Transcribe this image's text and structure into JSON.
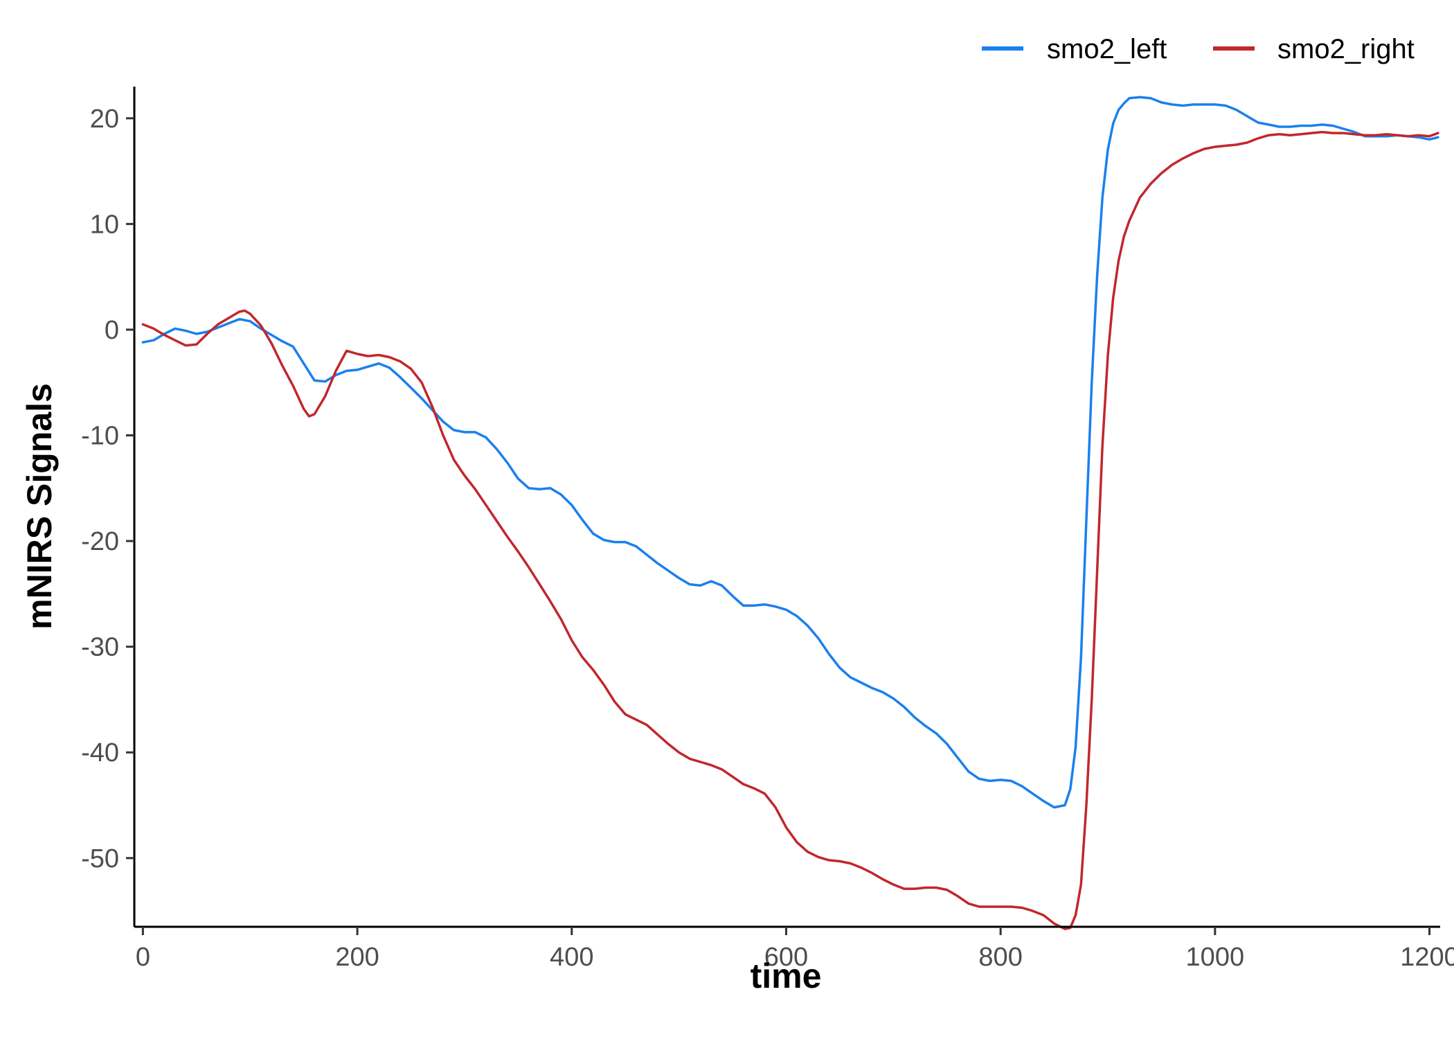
{
  "chart_data": {
    "type": "line",
    "xlabel": "time",
    "ylabel": "mNIRS Signals",
    "xlim": [
      -8,
      1210
    ],
    "ylim": [
      -56.5,
      23
    ],
    "xticks": [
      0,
      200,
      400,
      600,
      800,
      1000,
      1200
    ],
    "yticks": [
      -50,
      -40,
      -30,
      -20,
      -10,
      0,
      10,
      20
    ],
    "grid": false,
    "legend": {
      "position": "top-right"
    },
    "series": [
      {
        "name": "smo2_left",
        "color": "#1a80ee",
        "x": [
          0,
          10,
          20,
          30,
          40,
          50,
          60,
          70,
          80,
          90,
          100,
          110,
          120,
          130,
          140,
          150,
          160,
          170,
          180,
          190,
          200,
          210,
          220,
          230,
          240,
          250,
          260,
          270,
          280,
          290,
          300,
          310,
          320,
          330,
          340,
          350,
          360,
          370,
          380,
          390,
          400,
          410,
          420,
          430,
          440,
          450,
          460,
          470,
          480,
          490,
          500,
          510,
          520,
          530,
          540,
          550,
          560,
          570,
          580,
          590,
          600,
          610,
          620,
          630,
          640,
          650,
          660,
          670,
          680,
          690,
          700,
          710,
          720,
          730,
          740,
          750,
          760,
          770,
          780,
          790,
          800,
          810,
          820,
          830,
          840,
          850,
          860,
          865,
          870,
          875,
          880,
          885,
          890,
          895,
          900,
          905,
          910,
          915,
          920,
          930,
          940,
          950,
          960,
          970,
          980,
          990,
          1000,
          1010,
          1020,
          1030,
          1040,
          1050,
          1060,
          1070,
          1080,
          1090,
          1100,
          1110,
          1120,
          1130,
          1140,
          1150,
          1160,
          1170,
          1180,
          1190,
          1200,
          1208
        ],
        "y": [
          -1.2,
          -1.0,
          -0.4,
          0.1,
          -0.1,
          -0.4,
          -0.2,
          0.2,
          0.6,
          1.0,
          0.8,
          0.1,
          -0.5,
          -1.1,
          -1.6,
          -3.2,
          -4.8,
          -4.9,
          -4.3,
          -3.9,
          -3.8,
          -3.5,
          -3.2,
          -3.6,
          -4.5,
          -5.5,
          -6.5,
          -7.6,
          -8.7,
          -9.5,
          -9.7,
          -9.7,
          -10.2,
          -11.3,
          -12.6,
          -14.1,
          -15.0,
          -15.1,
          -15.0,
          -15.6,
          -16.6,
          -18.0,
          -19.3,
          -19.9,
          -20.1,
          -20.1,
          -20.5,
          -21.3,
          -22.1,
          -22.8,
          -23.5,
          -24.1,
          -24.2,
          -23.8,
          -24.2,
          -25.2,
          -26.1,
          -26.1,
          -26.0,
          -26.2,
          -26.5,
          -27.1,
          -28.0,
          -29.2,
          -30.7,
          -32.0,
          -32.9,
          -33.4,
          -33.9,
          -34.3,
          -34.9,
          -35.7,
          -36.7,
          -37.5,
          -38.2,
          -39.2,
          -40.5,
          -41.8,
          -42.5,
          -42.7,
          -42.6,
          -42.7,
          -43.2,
          -43.9,
          -44.6,
          -45.2,
          -45.0,
          -43.5,
          -39.5,
          -31.0,
          -18.0,
          -5.0,
          5.0,
          12.5,
          17.0,
          19.5,
          20.8,
          21.4,
          21.9,
          22.0,
          21.9,
          21.5,
          21.3,
          21.2,
          21.3,
          21.3,
          21.3,
          21.2,
          20.8,
          20.2,
          19.6,
          19.4,
          19.2,
          19.2,
          19.3,
          19.3,
          19.4,
          19.3,
          19.0,
          18.7,
          18.3,
          18.3,
          18.3,
          18.4,
          18.3,
          18.2,
          18.0,
          18.2
        ]
      },
      {
        "name": "smo2_right",
        "color": "#c1272d",
        "x": [
          0,
          10,
          20,
          30,
          40,
          50,
          60,
          70,
          80,
          90,
          95,
          100,
          110,
          120,
          130,
          140,
          150,
          155,
          160,
          170,
          180,
          190,
          200,
          210,
          220,
          230,
          240,
          250,
          260,
          270,
          280,
          290,
          300,
          310,
          320,
          330,
          340,
          350,
          360,
          370,
          380,
          390,
          400,
          410,
          420,
          430,
          440,
          450,
          460,
          470,
          480,
          490,
          500,
          510,
          520,
          530,
          540,
          550,
          560,
          570,
          580,
          590,
          600,
          610,
          620,
          630,
          640,
          650,
          660,
          670,
          680,
          690,
          700,
          710,
          720,
          730,
          740,
          750,
          760,
          770,
          780,
          790,
          800,
          810,
          820,
          830,
          840,
          850,
          860,
          865,
          870,
          875,
          880,
          885,
          890,
          895,
          900,
          905,
          910,
          915,
          920,
          930,
          940,
          950,
          960,
          970,
          980,
          990,
          1000,
          1010,
          1020,
          1030,
          1040,
          1050,
          1060,
          1070,
          1080,
          1090,
          1100,
          1110,
          1120,
          1130,
          1140,
          1150,
          1160,
          1170,
          1180,
          1190,
          1200,
          1208
        ],
        "y": [
          0.5,
          0.1,
          -0.5,
          -1.0,
          -1.5,
          -1.4,
          -0.4,
          0.5,
          1.1,
          1.7,
          1.8,
          1.5,
          0.4,
          -1.3,
          -3.4,
          -5.3,
          -7.5,
          -8.2,
          -8.0,
          -6.3,
          -3.9,
          -2.0,
          -2.3,
          -2.5,
          -2.4,
          -2.6,
          -3.0,
          -3.7,
          -5.0,
          -7.3,
          -10.0,
          -12.3,
          -13.8,
          -15.1,
          -16.6,
          -18.1,
          -19.6,
          -21.0,
          -22.5,
          -24.1,
          -25.7,
          -27.4,
          -29.4,
          -31.0,
          -32.2,
          -33.6,
          -35.2,
          -36.4,
          -36.9,
          -37.4,
          -38.3,
          -39.2,
          -40.0,
          -40.6,
          -40.9,
          -41.2,
          -41.6,
          -42.3,
          -43.0,
          -43.4,
          -43.9,
          -45.2,
          -47.1,
          -48.5,
          -49.4,
          -49.9,
          -50.2,
          -50.3,
          -50.5,
          -50.9,
          -51.4,
          -52.0,
          -52.5,
          -52.9,
          -52.9,
          -52.8,
          -52.8,
          -53.0,
          -53.6,
          -54.3,
          -54.6,
          -54.6,
          -54.6,
          -54.6,
          -54.7,
          -55.0,
          -55.4,
          -56.2,
          -56.7,
          -56.6,
          -55.4,
          -52.5,
          -45.0,
          -35.0,
          -23.0,
          -11.0,
          -2.5,
          3.0,
          6.5,
          8.8,
          10.3,
          12.5,
          13.8,
          14.8,
          15.6,
          16.2,
          16.7,
          17.1,
          17.3,
          17.4,
          17.5,
          17.7,
          18.1,
          18.4,
          18.5,
          18.4,
          18.5,
          18.6,
          18.7,
          18.6,
          18.6,
          18.5,
          18.4,
          18.4,
          18.5,
          18.4,
          18.3,
          18.4,
          18.3,
          18.6
        ]
      }
    ]
  }
}
